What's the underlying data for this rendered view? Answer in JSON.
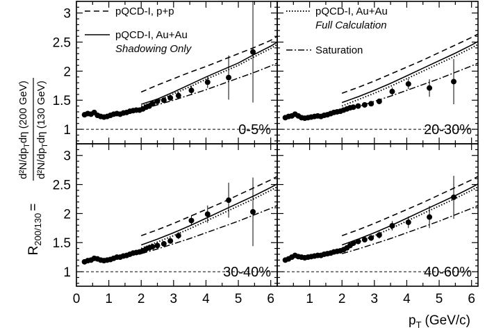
{
  "chart_data": {
    "type": "scatter",
    "x_axis": {
      "label_main": "p",
      "label_sub": "T",
      "label_unit": "(GeV/c)",
      "range": [
        0,
        6.2
      ],
      "ticks": [
        "0",
        "1",
        "2",
        "3",
        "4",
        "5",
        "6"
      ]
    },
    "y_axis": {
      "label_left": "R",
      "label_left_sub": "200/130",
      "equals": "=",
      "numerator": "d²N/dp",
      "numerator_sub": "T",
      "numerator_tail": "dη  (200 GeV)",
      "denominator": "d²N/dp",
      "denominator_sub": "T",
      "denominator_tail": "dη  (130 GeV)",
      "range": [
        0.75,
        3.2
      ],
      "ticks": [
        "1",
        "1.5",
        "2",
        "2.5",
        "3"
      ]
    },
    "reference_line": 1.0,
    "legend": {
      "pp": "pQCD-I, p+p",
      "shadow": "pQCD-I, Au+Au",
      "shadow_sub": "Shadowing Only",
      "full": "pQCD-I, Au+Au",
      "full_sub": "Full Calculation",
      "sat": "Saturation"
    },
    "curves_x": [
      2.0,
      2.5,
      3.0,
      3.5,
      4.0,
      4.5,
      5.0,
      5.5,
      6.0,
      6.2
    ],
    "panels": [
      {
        "label": "0-5%",
        "points": [
          {
            "x": 0.25,
            "y": 1.25
          },
          {
            "x": 0.35,
            "y": 1.27
          },
          {
            "x": 0.45,
            "y": 1.26
          },
          {
            "x": 0.55,
            "y": 1.29
          },
          {
            "x": 0.65,
            "y": 1.24
          },
          {
            "x": 0.75,
            "y": 1.22
          },
          {
            "x": 0.85,
            "y": 1.21
          },
          {
            "x": 0.95,
            "y": 1.22
          },
          {
            "x": 1.05,
            "y": 1.24
          },
          {
            "x": 1.15,
            "y": 1.26
          },
          {
            "x": 1.25,
            "y": 1.27
          },
          {
            "x": 1.35,
            "y": 1.26
          },
          {
            "x": 1.45,
            "y": 1.28
          },
          {
            "x": 1.55,
            "y": 1.29
          },
          {
            "x": 1.65,
            "y": 1.31
          },
          {
            "x": 1.75,
            "y": 1.32
          },
          {
            "x": 1.85,
            "y": 1.33
          },
          {
            "x": 1.95,
            "y": 1.33
          },
          {
            "x": 2.05,
            "y": 1.35
          },
          {
            "x": 2.15,
            "y": 1.38
          },
          {
            "x": 2.25,
            "y": 1.4
          },
          {
            "x": 2.35,
            "y": 1.44
          },
          {
            "x": 2.5,
            "y": 1.48,
            "err": 0.03
          },
          {
            "x": 2.7,
            "y": 1.5,
            "err": 0.04
          },
          {
            "x": 2.9,
            "y": 1.54,
            "err": 0.05
          },
          {
            "x": 3.15,
            "y": 1.58,
            "err": 0.06
          },
          {
            "x": 3.55,
            "y": 1.67,
            "err": 0.08
          },
          {
            "x": 4.05,
            "y": 1.81,
            "err": 0.1
          },
          {
            "x": 4.7,
            "y": 1.89,
            "err": 0.38
          },
          {
            "x": 5.45,
            "y": 2.33,
            "err": 0.87
          }
        ],
        "pp": [
          1.64,
          1.76,
          1.87,
          1.98,
          2.08,
          2.19,
          2.3,
          2.41,
          2.53,
          2.6
        ],
        "shadow": [
          1.43,
          1.52,
          1.64,
          1.77,
          1.9,
          2.02,
          2.14,
          2.29,
          2.43,
          2.5
        ],
        "full": [
          1.4,
          1.49,
          1.61,
          1.73,
          1.86,
          1.98,
          2.1,
          2.25,
          2.39,
          2.46
        ],
        "sat": [
          1.34,
          1.42,
          1.5,
          1.59,
          1.68,
          1.78,
          1.88,
          1.98,
          2.09,
          2.14
        ]
      },
      {
        "label": "20-30%",
        "points": [
          {
            "x": 0.25,
            "y": 1.2
          },
          {
            "x": 0.35,
            "y": 1.22
          },
          {
            "x": 0.45,
            "y": 1.23
          },
          {
            "x": 0.55,
            "y": 1.26
          },
          {
            "x": 0.65,
            "y": 1.23
          },
          {
            "x": 0.75,
            "y": 1.2
          },
          {
            "x": 0.85,
            "y": 1.19
          },
          {
            "x": 0.95,
            "y": 1.2
          },
          {
            "x": 1.05,
            "y": 1.21
          },
          {
            "x": 1.15,
            "y": 1.22
          },
          {
            "x": 1.25,
            "y": 1.23
          },
          {
            "x": 1.35,
            "y": 1.22
          },
          {
            "x": 1.45,
            "y": 1.24
          },
          {
            "x": 1.55,
            "y": 1.25
          },
          {
            "x": 1.65,
            "y": 1.27
          },
          {
            "x": 1.75,
            "y": 1.29
          },
          {
            "x": 1.85,
            "y": 1.3
          },
          {
            "x": 1.95,
            "y": 1.31
          },
          {
            "x": 2.05,
            "y": 1.33
          },
          {
            "x": 2.15,
            "y": 1.35
          },
          {
            "x": 2.25,
            "y": 1.37
          },
          {
            "x": 2.35,
            "y": 1.38
          },
          {
            "x": 2.5,
            "y": 1.4,
            "err": 0.03
          },
          {
            "x": 2.7,
            "y": 1.42,
            "err": 0.04
          },
          {
            "x": 2.9,
            "y": 1.44,
            "err": 0.04
          },
          {
            "x": 3.15,
            "y": 1.48,
            "err": 0.05
          },
          {
            "x": 3.55,
            "y": 1.65,
            "err": 0.07
          },
          {
            "x": 4.05,
            "y": 1.78,
            "err": 0.09
          },
          {
            "x": 4.7,
            "y": 1.71,
            "err": 0.15
          },
          {
            "x": 5.45,
            "y": 1.82,
            "err": 0.39
          }
        ],
        "pp": [
          1.62,
          1.72,
          1.83,
          1.95,
          2.07,
          2.19,
          2.32,
          2.45,
          2.58,
          2.64
        ],
        "shadow": [
          1.46,
          1.56,
          1.67,
          1.79,
          1.92,
          2.05,
          2.18,
          2.31,
          2.45,
          2.51
        ],
        "full": [
          1.4,
          1.51,
          1.62,
          1.74,
          1.87,
          2.0,
          2.13,
          2.26,
          2.4,
          2.46
        ],
        "sat": [
          1.31,
          1.39,
          1.48,
          1.57,
          1.67,
          1.77,
          1.87,
          1.98,
          2.09,
          2.14
        ]
      },
      {
        "label": "30-40%",
        "points": [
          {
            "x": 0.25,
            "y": 1.17
          },
          {
            "x": 0.35,
            "y": 1.19
          },
          {
            "x": 0.45,
            "y": 1.2
          },
          {
            "x": 0.55,
            "y": 1.23
          },
          {
            "x": 0.65,
            "y": 1.22
          },
          {
            "x": 0.75,
            "y": 1.2
          },
          {
            "x": 0.85,
            "y": 1.19
          },
          {
            "x": 0.95,
            "y": 1.2
          },
          {
            "x": 1.05,
            "y": 1.21
          },
          {
            "x": 1.15,
            "y": 1.23
          },
          {
            "x": 1.25,
            "y": 1.25
          },
          {
            "x": 1.35,
            "y": 1.25
          },
          {
            "x": 1.45,
            "y": 1.27
          },
          {
            "x": 1.55,
            "y": 1.28
          },
          {
            "x": 1.65,
            "y": 1.3
          },
          {
            "x": 1.75,
            "y": 1.32
          },
          {
            "x": 1.85,
            "y": 1.33
          },
          {
            "x": 1.95,
            "y": 1.34
          },
          {
            "x": 2.05,
            "y": 1.36
          },
          {
            "x": 2.15,
            "y": 1.39
          },
          {
            "x": 2.25,
            "y": 1.41
          },
          {
            "x": 2.35,
            "y": 1.43
          },
          {
            "x": 2.5,
            "y": 1.45,
            "err": 0.03
          },
          {
            "x": 2.7,
            "y": 1.48,
            "err": 0.04
          },
          {
            "x": 2.9,
            "y": 1.53,
            "err": 0.05
          },
          {
            "x": 3.15,
            "y": 1.62,
            "err": 0.06
          },
          {
            "x": 3.55,
            "y": 1.88,
            "err": 0.09
          },
          {
            "x": 4.05,
            "y": 1.99,
            "err": 0.15
          },
          {
            "x": 4.7,
            "y": 2.23,
            "err": 0.3
          },
          {
            "x": 5.45,
            "y": 2.03,
            "err": 0.59
          }
        ],
        "pp": [
          1.62,
          1.72,
          1.83,
          1.95,
          2.07,
          2.19,
          2.32,
          2.45,
          2.58,
          2.64
        ],
        "shadow": [
          1.46,
          1.56,
          1.67,
          1.79,
          1.92,
          2.05,
          2.18,
          2.31,
          2.45,
          2.51
        ],
        "full": [
          1.4,
          1.51,
          1.62,
          1.74,
          1.87,
          2.0,
          2.13,
          2.26,
          2.4,
          2.46
        ],
        "sat": [
          1.31,
          1.39,
          1.48,
          1.57,
          1.67,
          1.77,
          1.87,
          1.98,
          2.09,
          2.14
        ]
      },
      {
        "label": "40-60%",
        "points": [
          {
            "x": 0.25,
            "y": 1.2
          },
          {
            "x": 0.35,
            "y": 1.22
          },
          {
            "x": 0.45,
            "y": 1.25
          },
          {
            "x": 0.55,
            "y": 1.28
          },
          {
            "x": 0.65,
            "y": 1.26
          },
          {
            "x": 0.75,
            "y": 1.25
          },
          {
            "x": 0.85,
            "y": 1.24
          },
          {
            "x": 0.95,
            "y": 1.25
          },
          {
            "x": 1.05,
            "y": 1.26
          },
          {
            "x": 1.15,
            "y": 1.27
          },
          {
            "x": 1.25,
            "y": 1.28
          },
          {
            "x": 1.35,
            "y": 1.28
          },
          {
            "x": 1.45,
            "y": 1.3
          },
          {
            "x": 1.55,
            "y": 1.31
          },
          {
            "x": 1.65,
            "y": 1.32
          },
          {
            "x": 1.75,
            "y": 1.34
          },
          {
            "x": 1.85,
            "y": 1.35
          },
          {
            "x": 1.95,
            "y": 1.36
          },
          {
            "x": 2.05,
            "y": 1.38
          },
          {
            "x": 2.15,
            "y": 1.41
          },
          {
            "x": 2.25,
            "y": 1.45
          },
          {
            "x": 2.35,
            "y": 1.49
          },
          {
            "x": 2.5,
            "y": 1.52,
            "err": 0.03
          },
          {
            "x": 2.7,
            "y": 1.55,
            "err": 0.04
          },
          {
            "x": 2.9,
            "y": 1.58,
            "err": 0.05
          },
          {
            "x": 3.15,
            "y": 1.63,
            "err": 0.06
          },
          {
            "x": 3.55,
            "y": 1.79,
            "err": 0.08
          },
          {
            "x": 4.05,
            "y": 1.85,
            "err": 0.1
          },
          {
            "x": 4.7,
            "y": 1.94,
            "err": 0.19
          },
          {
            "x": 5.45,
            "y": 2.28,
            "err": 0.37
          }
        ],
        "pp": [
          1.62,
          1.72,
          1.83,
          1.95,
          2.07,
          2.19,
          2.32,
          2.45,
          2.58,
          2.64
        ],
        "shadow": [
          1.46,
          1.56,
          1.67,
          1.79,
          1.92,
          2.05,
          2.18,
          2.31,
          2.45,
          2.51
        ],
        "full": [
          1.4,
          1.51,
          1.62,
          1.74,
          1.87,
          2.0,
          2.13,
          2.26,
          2.4,
          2.46
        ],
        "sat": [
          1.31,
          1.39,
          1.48,
          1.57,
          1.67,
          1.77,
          1.87,
          1.98,
          2.09,
          2.14
        ]
      }
    ]
  }
}
